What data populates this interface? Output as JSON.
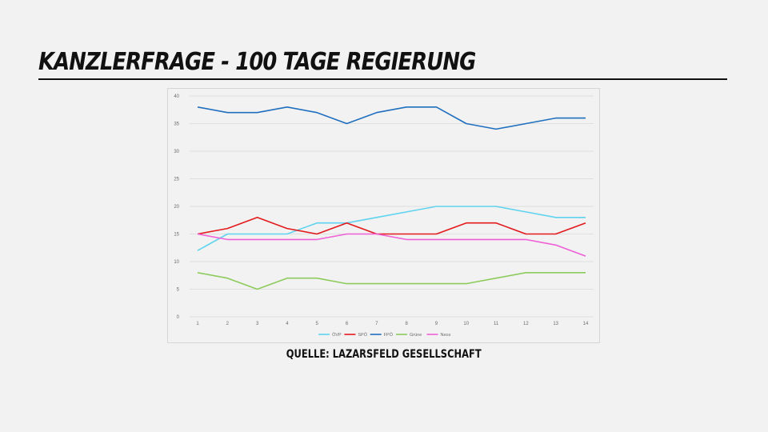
{
  "slide": {
    "title": "KANZLERFRAGE - 100 TAGE REGIERUNG",
    "source": "QUELLE: LAZARSFELD GESELLSCHAFT"
  },
  "chart_data": {
    "type": "line",
    "title": "",
    "xlabel": "",
    "ylabel": "",
    "x": [
      1,
      2,
      3,
      4,
      5,
      6,
      7,
      8,
      9,
      10,
      11,
      12,
      13,
      14
    ],
    "ylim": [
      0,
      40
    ],
    "yticks": [
      0,
      5,
      10,
      15,
      20,
      25,
      30,
      35,
      40
    ],
    "grid": true,
    "legend_position": "bottom",
    "series": [
      {
        "name": "ÖVP",
        "color": "#5fd3ef",
        "values": [
          12,
          15,
          15,
          15,
          17,
          17,
          18,
          19,
          20,
          20,
          20,
          19,
          18,
          18
        ]
      },
      {
        "name": "SPÖ",
        "color": "#e3191c",
        "values": [
          15,
          16,
          18,
          16,
          15,
          17,
          15,
          15,
          15,
          17,
          17,
          15,
          15,
          17
        ]
      },
      {
        "name": "FPÖ",
        "color": "#1f6fbf",
        "values": [
          38,
          37,
          37,
          38,
          37,
          35,
          37,
          38,
          38,
          35,
          34,
          35,
          36,
          36
        ]
      },
      {
        "name": "Grüne",
        "color": "#8dcb5c",
        "values": [
          8,
          7,
          5,
          7,
          7,
          6,
          6,
          6,
          6,
          6,
          7,
          8,
          8,
          8
        ]
      },
      {
        "name": "Neos",
        "color": "#ef5fd6",
        "values": [
          15,
          14,
          14,
          14,
          14,
          15,
          15,
          14,
          14,
          14,
          14,
          14,
          13,
          11
        ]
      }
    ]
  }
}
